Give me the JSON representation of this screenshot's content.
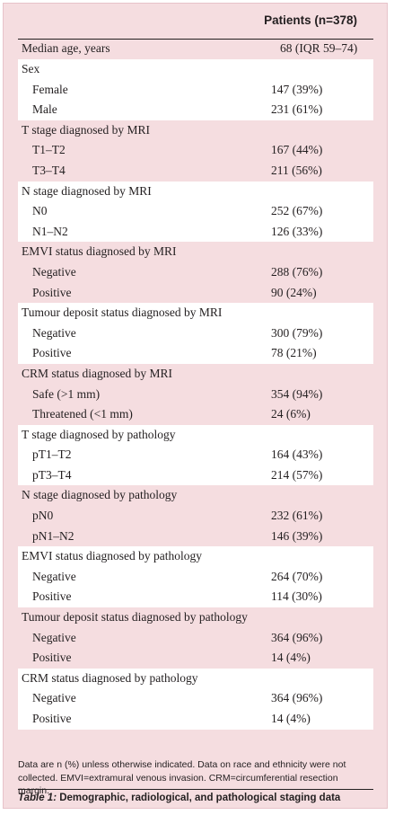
{
  "header": {
    "column": "Patients (n=378)"
  },
  "rows": [
    {
      "label": "Median age, years",
      "value": "68 (IQR 59–74)",
      "style": "single",
      "bg": "pink"
    },
    {
      "label": "Sex",
      "value": "",
      "bg": "white",
      "items": [
        {
          "label": "Female",
          "value": "147 (39%)"
        },
        {
          "label": "Male",
          "value": "231 (61%)"
        }
      ]
    },
    {
      "label": "T stage diagnosed by MRI",
      "value": "",
      "bg": "pink",
      "items": [
        {
          "label": "T1–T2",
          "value": "167 (44%)"
        },
        {
          "label": "T3–T4",
          "value": "211 (56%)"
        }
      ]
    },
    {
      "label": "N stage diagnosed by MRI",
      "value": "",
      "bg": "white",
      "items": [
        {
          "label": "N0",
          "value": "252 (67%)"
        },
        {
          "label": "N1–N2",
          "value": "126 (33%)"
        }
      ]
    },
    {
      "label": "EMVI status diagnosed by MRI",
      "value": "",
      "bg": "pink",
      "items": [
        {
          "label": "Negative",
          "value": "288 (76%)"
        },
        {
          "label": "Positive",
          "value": " 90 (24%)"
        }
      ]
    },
    {
      "label": "Tumour deposit status diagnosed by MRI",
      "value": "",
      "bg": "white",
      "items": [
        {
          "label": "Negative",
          "value": "300 (79%)"
        },
        {
          "label": "Positive",
          "value": " 78 (21%)"
        }
      ]
    },
    {
      "label": "CRM status diagnosed by MRI",
      "value": "",
      "bg": "pink",
      "items": [
        {
          "label": "Safe (>1 mm)",
          "value": "354 (94%)"
        },
        {
          "label": "Threatened (<1 mm)",
          "value": " 24 (6%)"
        }
      ]
    },
    {
      "label": "T stage diagnosed by pathology",
      "value": "",
      "bg": "white",
      "items": [
        {
          "label": "pT1–T2",
          "value": "164 (43%)"
        },
        {
          "label": "pT3–T4",
          "value": "214 (57%)"
        }
      ]
    },
    {
      "label": "N stage diagnosed by pathology",
      "value": "",
      "bg": "pink",
      "items": [
        {
          "label": "pN0",
          "value": "232 (61%)"
        },
        {
          "label": "pN1–N2",
          "value": "146 (39%)"
        }
      ]
    },
    {
      "label": "EMVI status diagnosed by pathology",
      "value": "",
      "bg": "white",
      "items": [
        {
          "label": "Negative",
          "value": "264 (70%)"
        },
        {
          "label": "Positive",
          "value": "114 (30%)"
        }
      ]
    },
    {
      "label": "Tumour deposit status diagnosed by pathology",
      "value": "",
      "bg": "pink",
      "items": [
        {
          "label": "Negative",
          "value": "364 (96%)"
        },
        {
          "label": "Positive",
          "value": " 14 (4%)"
        }
      ]
    },
    {
      "label": "CRM status diagnosed by pathology",
      "value": "",
      "bg": "white",
      "items": [
        {
          "label": "Negative",
          "value": "364 (96%)"
        },
        {
          "label": "Positive",
          "value": " 14 (4%)"
        }
      ]
    }
  ],
  "footnote": "Data are n (%) unless otherwise indicated. Data on race and ethnicity were not collected. EMVI=extramural venous invasion. CRM=circumferential resection margin.",
  "caption": {
    "number": "Table 1:",
    "title": " Demographic, radiological, and pathological staging data"
  },
  "colors": {
    "frame": "#f5dde0",
    "band": "#ffffff",
    "text": "#231f20"
  }
}
